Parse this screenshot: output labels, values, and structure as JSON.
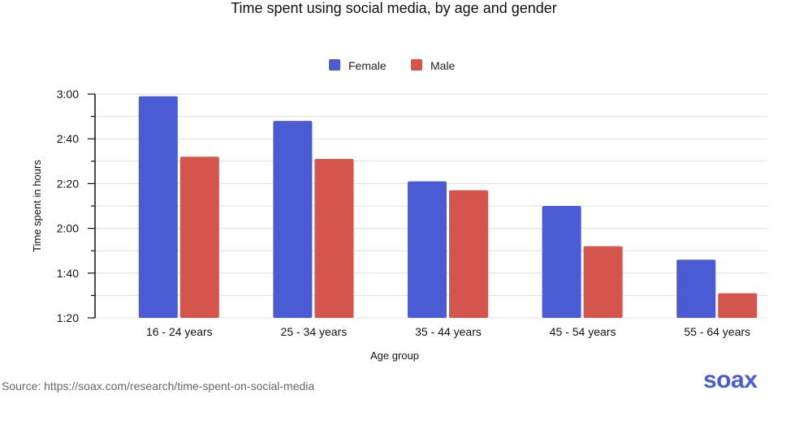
{
  "chart_data": {
    "type": "bar",
    "title": "Time spent using social media, by age and gender",
    "xlabel": "Age group",
    "ylabel": "Time spent in hours",
    "categories": [
      "16 - 24 years",
      "25 - 34 years",
      "35 - 44 years",
      "45 - 54 years",
      "55 - 64 years"
    ],
    "series": [
      {
        "name": "Female",
        "color": "#4a5bd4",
        "values_minutes": [
          179,
          168,
          141,
          130,
          106
        ]
      },
      {
        "name": "Male",
        "color": "#d4554c",
        "values_minutes": [
          152,
          151,
          137,
          112,
          91
        ]
      }
    ],
    "yticks": [
      "1:20",
      "1:40",
      "2:00",
      "2:20",
      "2:40",
      "3:00"
    ],
    "ylim_minutes": [
      80,
      180
    ],
    "grid": true,
    "legend": "top-center"
  },
  "source": "Source: https://soax.com/research/time-spent-on-social-media",
  "logo": "soax"
}
